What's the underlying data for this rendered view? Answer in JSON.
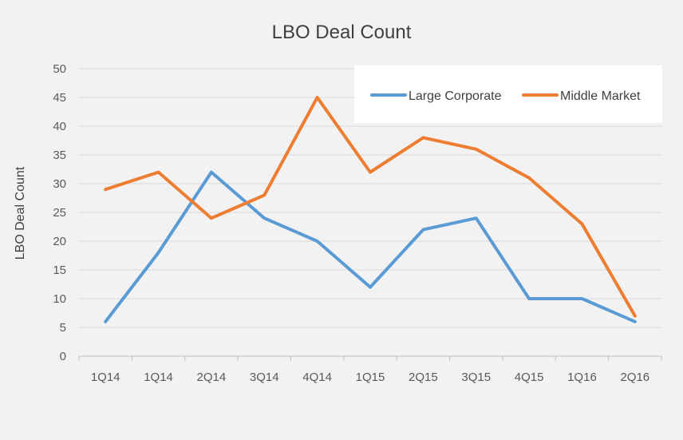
{
  "chart_data": {
    "type": "line",
    "title": "LBO Deal Count",
    "xlabel": "",
    "ylabel": "LBO Deal Count",
    "categories": [
      "1Q14",
      "1Q14",
      "2Q14",
      "3Q14",
      "4Q14",
      "1Q15",
      "2Q15",
      "3Q15",
      "4Q15",
      "1Q16",
      "2Q16"
    ],
    "ylim": [
      0,
      50
    ],
    "ytick_step": 5,
    "grid": true,
    "legend_position": "top-right",
    "series": [
      {
        "name": "Large Corporate",
        "color": "#5b9bd5",
        "values": [
          6,
          18,
          32,
          24,
          20,
          12,
          22,
          24,
          10,
          10,
          6
        ]
      },
      {
        "name": "Middle Market",
        "color": "#ed7d31",
        "values": [
          29,
          32,
          24,
          28,
          45,
          32,
          38,
          36,
          31,
          23,
          7
        ]
      }
    ]
  }
}
